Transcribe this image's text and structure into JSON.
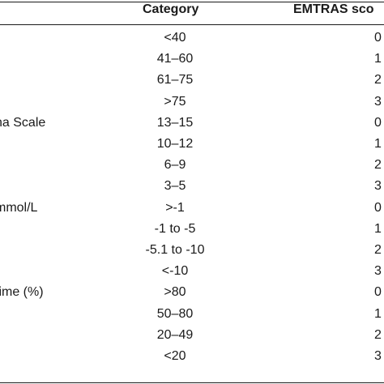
{
  "headers": {
    "category": "Category",
    "score": "EMTRAS sco"
  },
  "rows": [
    {
      "variable": "",
      "category": "<40",
      "score": "0"
    },
    {
      "variable": "",
      "category": "41–60",
      "score": "1"
    },
    {
      "variable": "",
      "category": "61–75",
      "score": "2"
    },
    {
      "variable": "",
      "category": ">75",
      "score": "3"
    },
    {
      "variable": "na Scale",
      "category": "13–15",
      "score": "0"
    },
    {
      "variable": "",
      "category": "10–12",
      "score": "1"
    },
    {
      "variable": "",
      "category": "6–9",
      "score": "2"
    },
    {
      "variable": "",
      "category": "3–5",
      "score": "3"
    },
    {
      "variable": " mmol/L",
      "category": ">-1",
      "score": "0"
    },
    {
      "variable": "",
      "category": "-1 to -5",
      "score": "1"
    },
    {
      "variable": "",
      "category": "-5.1 to -10",
      "score": "2"
    },
    {
      "variable": "",
      "category": "<-10",
      "score": "3"
    },
    {
      "variable": "time (%)",
      "category": ">80",
      "score": "0"
    },
    {
      "variable": "",
      "category": "50–80",
      "score": "1"
    },
    {
      "variable": "",
      "category": "20–49",
      "score": "2"
    },
    {
      "variable": "",
      "category": "<20",
      "score": "3"
    }
  ]
}
